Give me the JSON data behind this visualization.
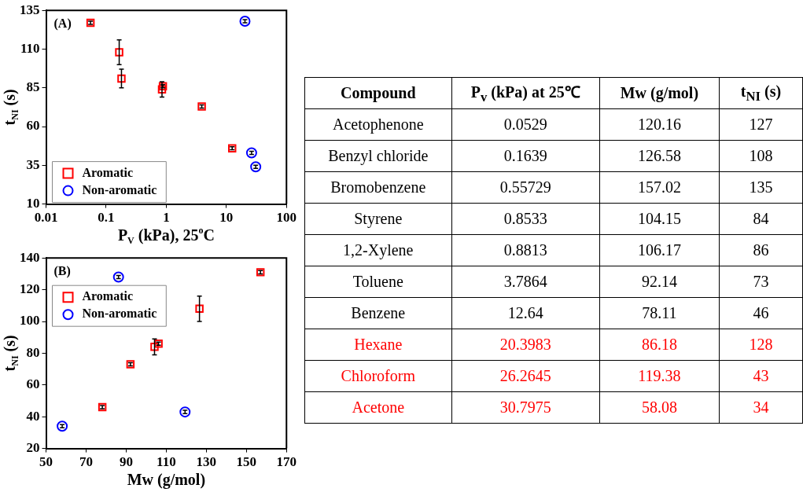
{
  "chart_data": [
    {
      "type": "scatter",
      "annotations": [
        "(A)"
      ],
      "xlabel": "P$_{V}$ (kPa), 25$^{o}$C",
      "ylabel": "t$_{NI}$ (s)",
      "log": "x",
      "xlim": [
        0.01,
        100
      ],
      "xticks": [
        0.01,
        0.1,
        1,
        10,
        100
      ],
      "ylim": [
        10,
        135
      ],
      "yticks": [
        10,
        35,
        60,
        85,
        110,
        135
      ],
      "legend": "bottom left",
      "grid": false,
      "series": [
        {
          "name": "Aromatic",
          "color": "#ff0000",
          "marker": "square",
          "x": [
            0.055,
            0.165,
            0.18,
            0.85,
            0.88,
            3.9,
            12.5
          ],
          "values": [
            127,
            108,
            91,
            84,
            86,
            73,
            46
          ],
          "errors": [
            1,
            8,
            6,
            5,
            1,
            1,
            1
          ]
        },
        {
          "name": "Non-aromatic",
          "color": "#0000ff",
          "marker": "circle",
          "x": [
            20.4,
            26.3,
            30.8
          ],
          "values": [
            128,
            43,
            34
          ],
          "errors": [
            1,
            1,
            1
          ]
        }
      ]
    },
    {
      "type": "scatter",
      "annotations": [
        "(B)"
      ],
      "xlabel": "Mw (g/mol)",
      "ylabel": "t$_{NI}$ (s)",
      "xlim": [
        50,
        170
      ],
      "xticks": [
        50,
        70,
        90,
        110,
        130,
        150,
        170
      ],
      "ylim": [
        20,
        140
      ],
      "yticks": [
        20,
        40,
        60,
        80,
        100,
        120,
        140
      ],
      "legend": "top left",
      "grid": false,
      "series": [
        {
          "name": "Aromatic",
          "color": "#ff0000",
          "marker": "square",
          "x": [
            78.11,
            92.14,
            104.15,
            106.17,
            126.58,
            157.02
          ],
          "values": [
            46,
            73,
            84,
            86,
            108,
            131
          ],
          "errors": [
            1,
            1,
            5,
            1,
            8,
            1
          ]
        },
        {
          "name": "Non-aromatic",
          "color": "#0000ff",
          "marker": "circle",
          "x": [
            58.08,
            86.18,
            119.38
          ],
          "values": [
            34,
            128,
            43
          ],
          "errors": [
            1,
            1,
            1
          ]
        }
      ]
    },
    {
      "type": "other",
      "categories": [
        "Compound",
        "P$_{v}$ (kPa) at 25℃",
        "Mw (g/mol)",
        "t$_{NI}$ (s)"
      ],
      "annotations": [
        "Acetophenone",
        "0.0529",
        "120.16",
        "127",
        "Benzyl chloride",
        "0.1639",
        "126.58",
        "108",
        "Bromobenzene",
        "0.55729",
        "157.02",
        "135",
        "Styrene",
        "0.8533",
        "104.15",
        "84",
        "1,2-Xylene",
        "0.8813",
        "106.17",
        "86",
        "Toluene",
        "3.7864",
        "92.14",
        "73",
        "Benzene",
        "12.64",
        "78.11",
        "46",
        "Hexane",
        "20.3983",
        "86.18",
        "128",
        "Chloroform",
        "26.2645",
        "119.38",
        "43",
        "Acetone",
        "30.7975",
        "58.08",
        "34"
      ],
      "colors": [
        "#000000",
        "#000000",
        "#000000",
        "#000000",
        "#000000",
        "#000000",
        "#000000",
        "#ff0000",
        "#ff0000",
        "#ff0000"
      ]
    }
  ]
}
